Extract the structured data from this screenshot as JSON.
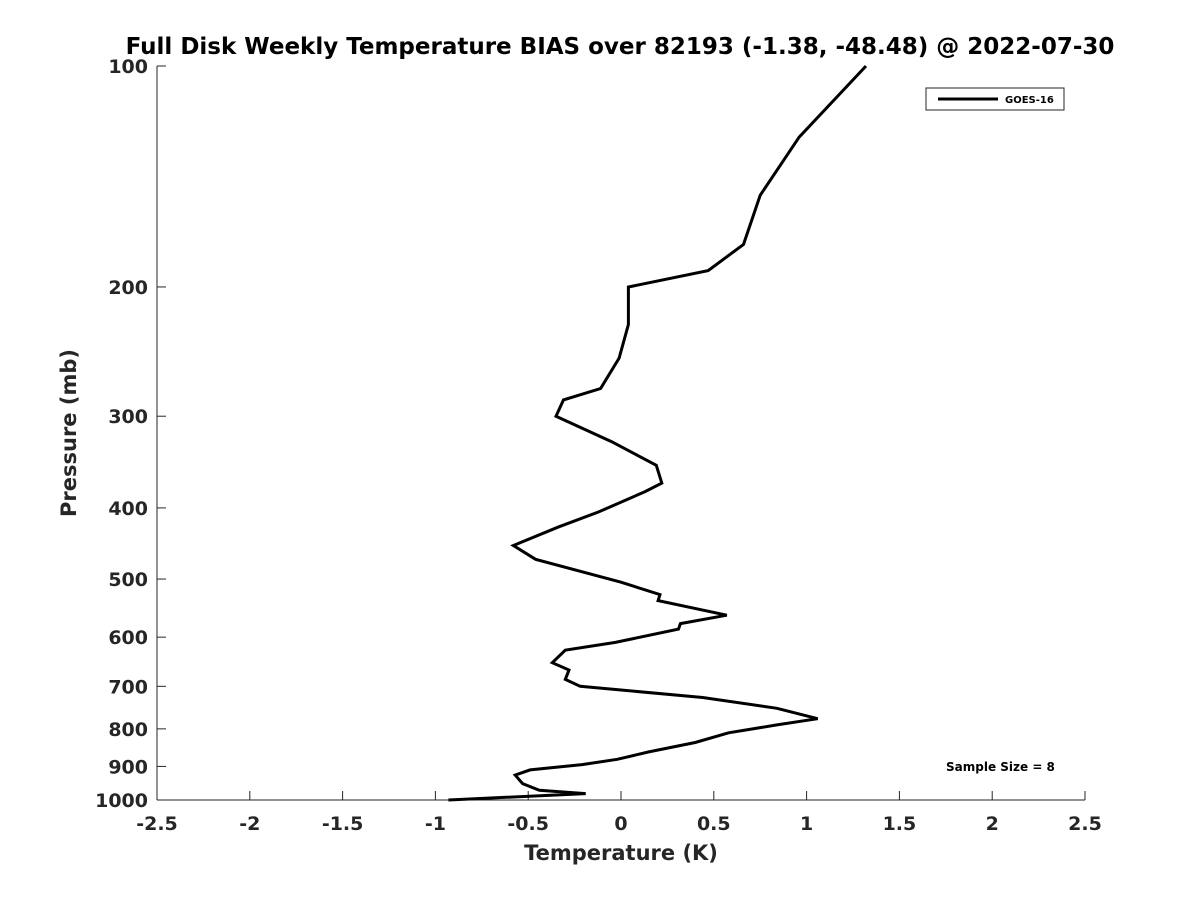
{
  "chart_data": {
    "type": "line",
    "title": "Full Disk Weekly Temperature BIAS over 82193 (-1.38, -48.48) @ 2022-07-30",
    "xlabel": "Temperature (K)",
    "ylabel": "Pressure (mb)",
    "xlim": [
      -2.5,
      2.5
    ],
    "ylim": [
      1000,
      100
    ],
    "yscale": "log",
    "y_inverted": true,
    "grid": false,
    "legend_position": "top-right",
    "x_ticks": [
      -2.5,
      -2,
      -1.5,
      -1,
      -0.5,
      0,
      0.5,
      1,
      1.5,
      2,
      2.5
    ],
    "x_tick_labels": [
      "-2.5",
      "-2",
      "-1.5",
      "-1",
      "-0.5",
      "0",
      "0.5",
      "1",
      "1.5",
      "2",
      "2.5"
    ],
    "y_ticks": [
      100,
      200,
      300,
      400,
      500,
      600,
      700,
      800,
      900,
      1000
    ],
    "y_tick_labels": [
      "100",
      "200",
      "300",
      "400",
      "500",
      "600",
      "700",
      "800",
      "900",
      "1000"
    ],
    "series": [
      {
        "name": "GOES-16",
        "color": "#000000",
        "points": [
          [
            1.32,
            100
          ],
          [
            0.96,
            125
          ],
          [
            0.75,
            150
          ],
          [
            0.66,
            175
          ],
          [
            0.47,
            190
          ],
          [
            0.04,
            200
          ],
          [
            0.04,
            225
          ],
          [
            -0.01,
            250
          ],
          [
            -0.11,
            275
          ],
          [
            -0.31,
            285
          ],
          [
            -0.35,
            300
          ],
          [
            -0.05,
            325
          ],
          [
            0.19,
            350
          ],
          [
            0.22,
            370
          ],
          [
            0.13,
            380
          ],
          [
            -0.12,
            405
          ],
          [
            -0.34,
            425
          ],
          [
            -0.58,
            450
          ],
          [
            -0.46,
            470
          ],
          [
            0.0,
            505
          ],
          [
            0.21,
            525
          ],
          [
            0.2,
            535
          ],
          [
            0.57,
            560
          ],
          [
            0.32,
            575
          ],
          [
            0.31,
            585
          ],
          [
            -0.03,
            610
          ],
          [
            -0.3,
            625
          ],
          [
            -0.37,
            650
          ],
          [
            -0.28,
            665
          ],
          [
            -0.3,
            685
          ],
          [
            -0.22,
            700
          ],
          [
            0.44,
            725
          ],
          [
            0.84,
            750
          ],
          [
            1.06,
            775
          ],
          [
            0.84,
            790
          ],
          [
            0.58,
            810
          ],
          [
            0.4,
            835
          ],
          [
            0.15,
            860
          ],
          [
            -0.02,
            880
          ],
          [
            -0.21,
            895
          ],
          [
            -0.49,
            910
          ],
          [
            -0.57,
            925
          ],
          [
            -0.53,
            950
          ],
          [
            -0.44,
            970
          ],
          [
            -0.19,
            980
          ],
          [
            -0.93,
            1000
          ]
        ]
      }
    ],
    "annotation": "Sample Size = 8"
  }
}
